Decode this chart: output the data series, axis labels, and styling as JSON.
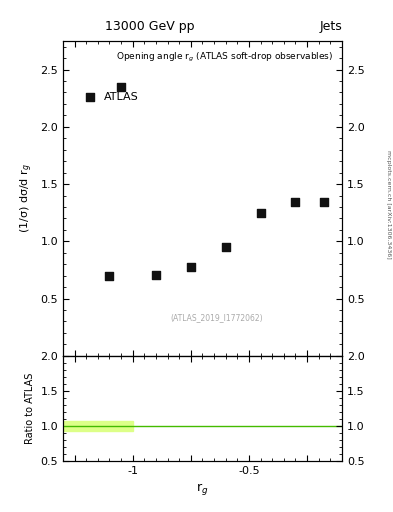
{
  "title": "13000 GeV pp",
  "title_right": "Jets",
  "ylabel_main": "(1/σ) dσ/d r$_g$",
  "ylabel_ratio": "Ratio to ATLAS",
  "xlabel": "r$_g$",
  "annotation": "Opening angle r$_g$ (ATLAS soft-drop observables)",
  "watermark": "(ATLAS_2019_I1772062)",
  "legend_label": "ATLAS",
  "right_label": "mcplots.cern.ch [arXiv:1306.3436]",
  "data_x": [
    -1.1,
    -1.05,
    -0.9,
    -0.75,
    -0.6,
    -0.45,
    -0.3,
    -0.175
  ],
  "data_y": [
    0.7,
    2.35,
    0.71,
    0.78,
    0.95,
    1.25,
    1.34,
    1.34
  ],
  "xlim": [
    -1.3,
    -0.1
  ],
  "ylim_main": [
    0.0,
    2.75
  ],
  "ylim_ratio": [
    0.5,
    2.0
  ],
  "ratio_line_y": 1.0,
  "ratio_band_xmin": -1.3,
  "ratio_band_xmax": -1.0,
  "ratio_band_low": 0.93,
  "ratio_band_high": 1.07,
  "ratio_band_color": "#ddff88",
  "ratio_line_color": "#44bb00",
  "marker_color": "#111111",
  "marker_size": 6,
  "yticks_main": [
    0.5,
    1.0,
    1.5,
    2.0,
    2.5
  ],
  "yticks_ratio": [
    0.5,
    1.0,
    1.5,
    2.0
  ],
  "xticks": [
    -1.25,
    -1.0,
    -0.75,
    -0.5,
    -0.25
  ],
  "xtick_labels": [
    "",
    "-1",
    "",
    "-0.5",
    ""
  ]
}
